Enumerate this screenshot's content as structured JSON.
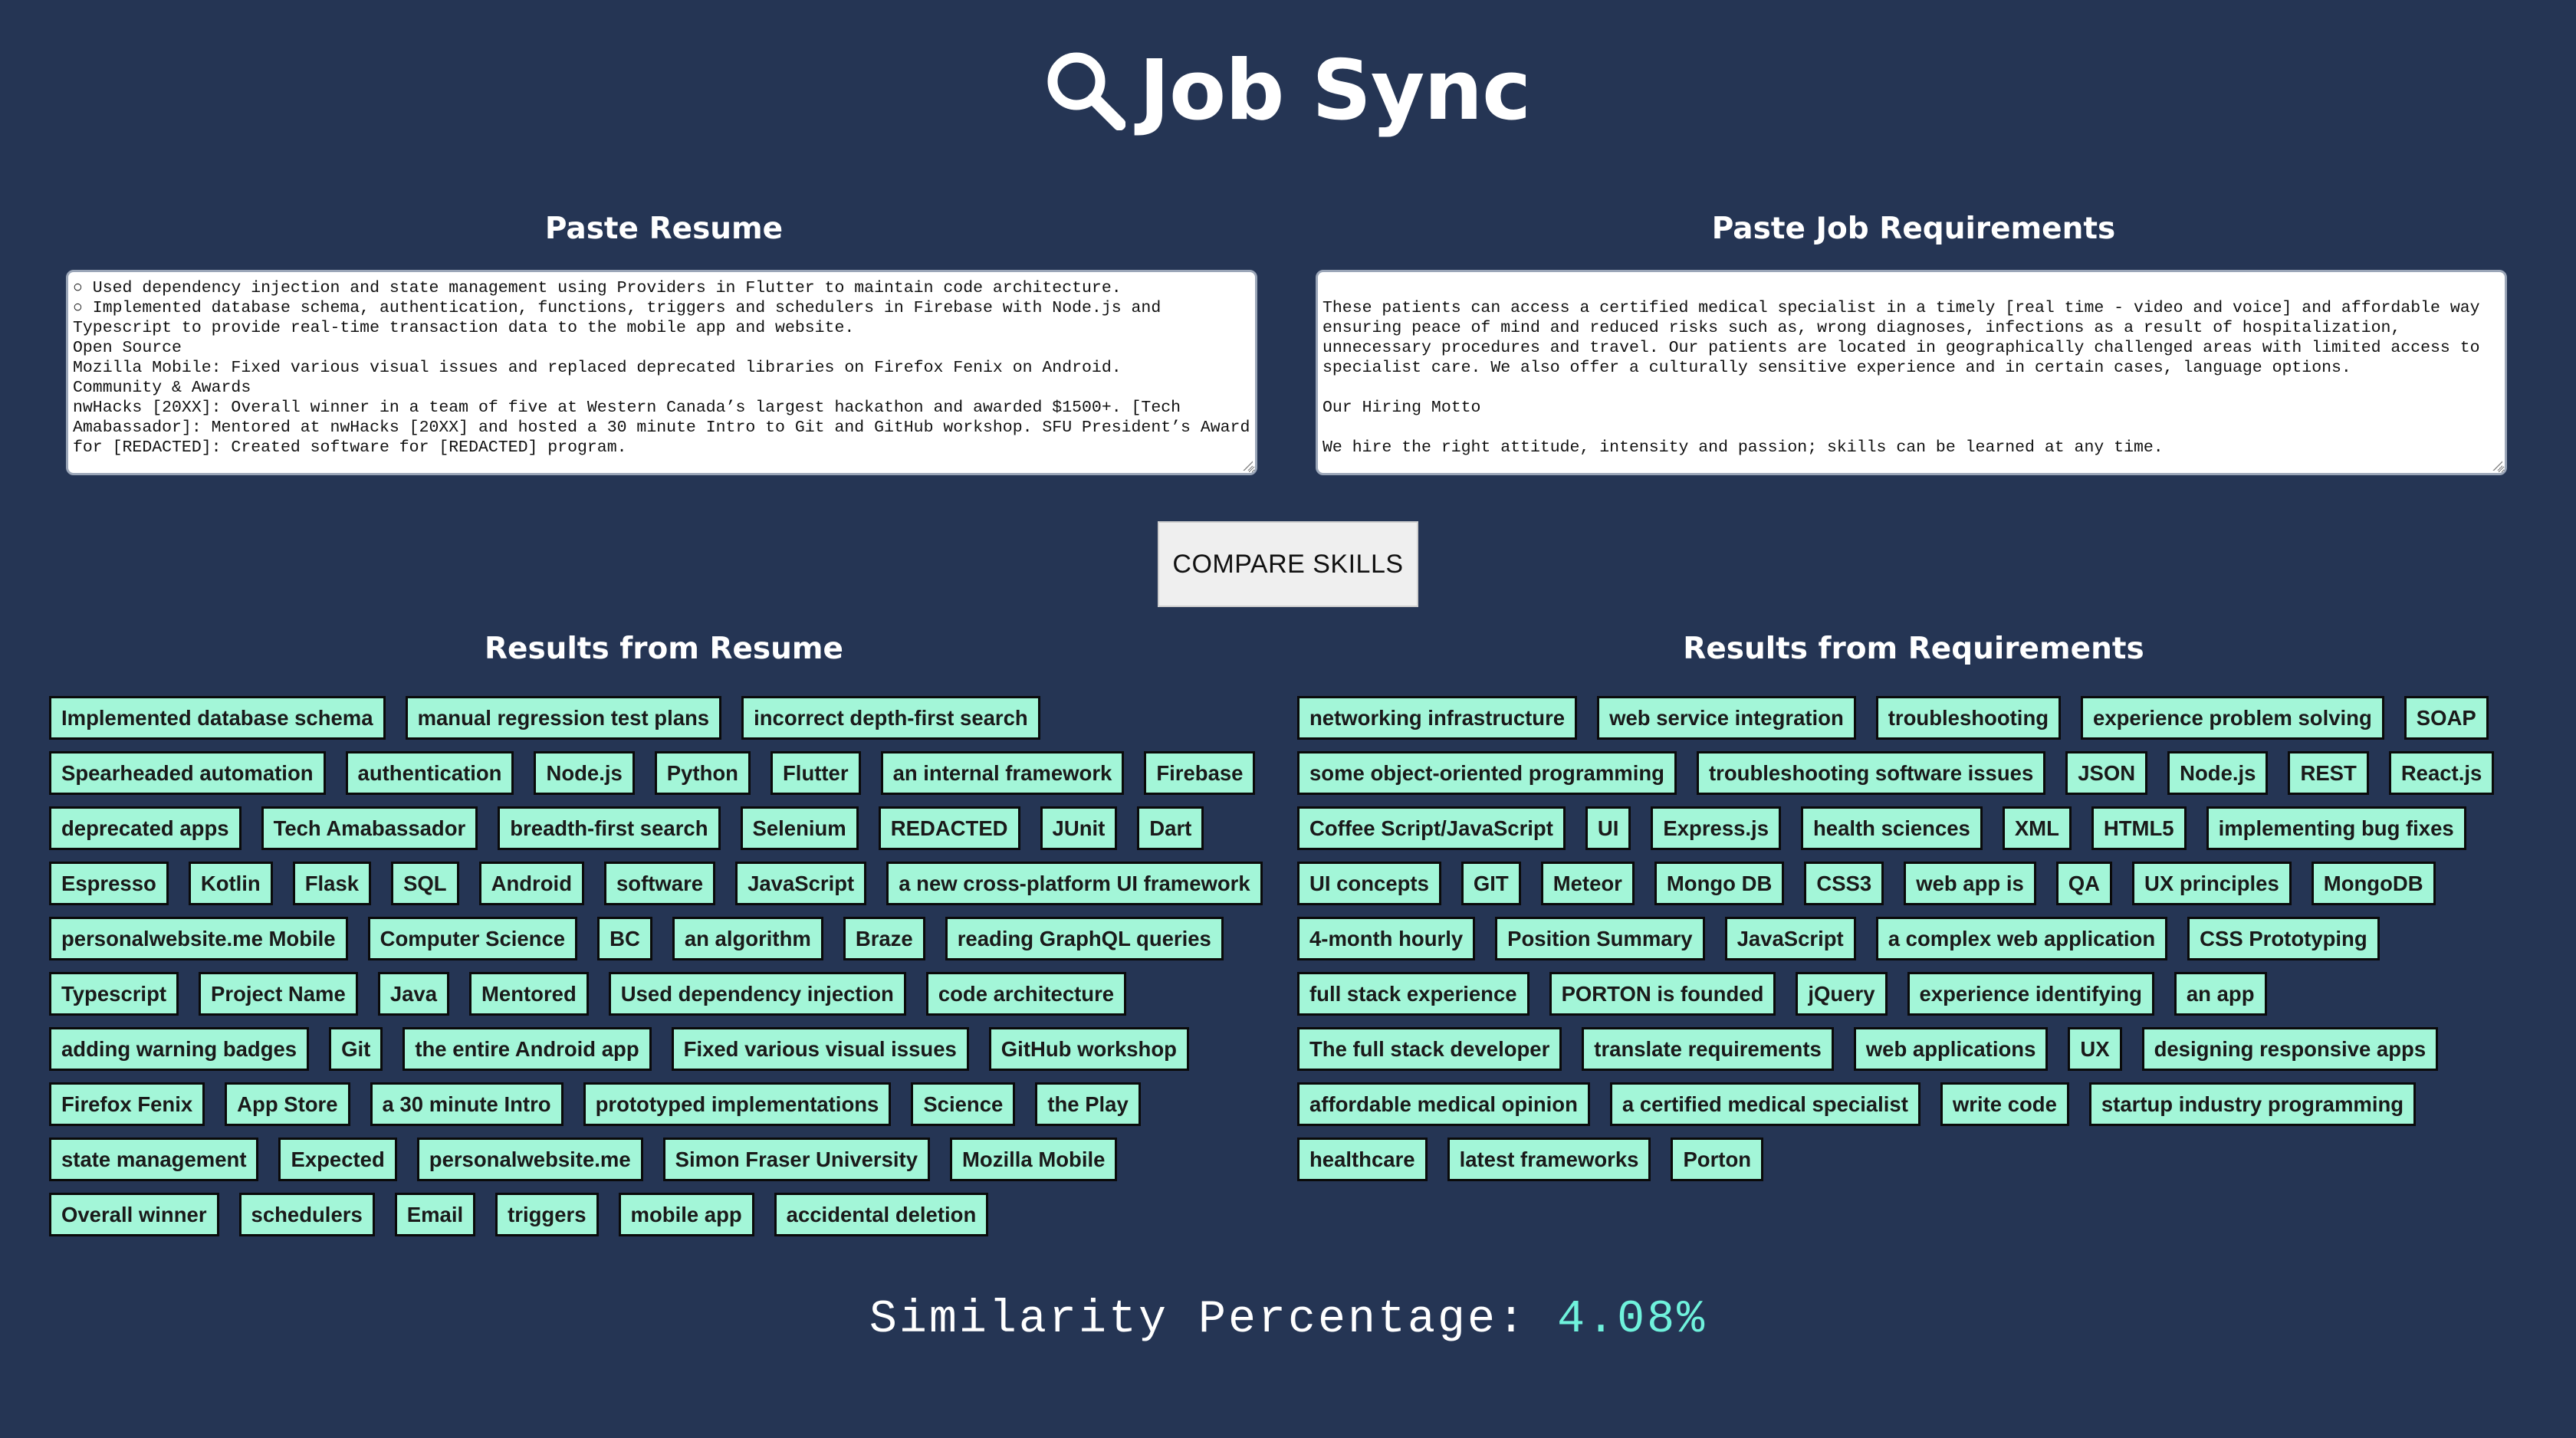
{
  "header": {
    "title": "Job Sync",
    "icon": "search-icon"
  },
  "resume_section": {
    "heading": "Paste Resume",
    "text": "○ Used dependency injection and state management using Providers in Flutter to maintain code architecture.\n○ Implemented database schema, authentication, functions, triggers and schedulers in Firebase with Node.js and Typescript to provide real-time transaction data to the mobile app and website.\nOpen Source\nMozilla Mobile: Fixed various visual issues and replaced deprecated libraries on Firefox Fenix on Android.\nCommunity & Awards\nnwHacks [20XX]: Overall winner in a team of five at Western Canada’s largest hackathon and awarded $1500+. [Tech Amabassador]: Mentored at nwHacks [20XX] and hosted a 30 minute Intro to Git and GitHub workshop. SFU President’s Award for [REDACTED]: Created software for [REDACTED] program."
  },
  "requirements_section": {
    "heading": "Paste Job Requirements",
    "text": "\nThese patients can access a certified medical specialist in a timely [real time - video and voice] and affordable way ensuring peace of mind and reduced risks such as, wrong diagnoses, infections as a result of hospitalization, unnecessary procedures and travel. Our patients are located in geographically challenged areas with limited access to specialist care. We also offer a culturally sensitive experience and in certain cases, language options.\n\nOur Hiring Motto\n\nWe hire the right attitude, intensity and passion; skills can be learned at any time."
  },
  "compare_button": {
    "label": "COMPARE SKILLS"
  },
  "results_resume": {
    "heading": "Results from Resume",
    "tags": [
      "Implemented database schema",
      "manual regression test plans",
      "incorrect depth-first search",
      "Spearheaded automation",
      "authentication",
      "Node.js",
      "Python",
      "Flutter",
      "an internal framework",
      "Firebase",
      "deprecated apps",
      "Tech Amabassador",
      "breadth-first search",
      "Selenium",
      "REDACTED",
      "JUnit",
      "Dart",
      "Espresso",
      "Kotlin",
      "Flask",
      "SQL",
      "Android",
      "software",
      "JavaScript",
      "a new cross-platform UI framework",
      "personalwebsite.me Mobile",
      "Computer Science",
      "BC",
      "an algorithm",
      "Braze",
      "reading GraphQL queries",
      "Typescript",
      "Project Name",
      "Java",
      "Mentored",
      "Used dependency injection",
      "code architecture",
      "adding warning badges",
      "Git",
      "the entire Android app",
      "Fixed various visual issues",
      "GitHub workshop",
      "Firefox Fenix",
      "App Store",
      "a 30 minute Intro",
      "prototyped implementations",
      "Science",
      "the Play",
      "state management",
      "Expected",
      "personalwebsite.me",
      "Simon Fraser University",
      "Mozilla Mobile",
      "Overall winner",
      "schedulers",
      "Email",
      "triggers",
      "mobile app",
      "accidental deletion"
    ]
  },
  "results_requirements": {
    "heading": "Results from Requirements",
    "tags": [
      "networking infrastructure",
      "web service integration",
      "troubleshooting",
      "experience problem solving",
      "SOAP",
      "some object-oriented programming",
      "troubleshooting software issues",
      "JSON",
      "Node.js",
      "REST",
      "React.js",
      "Coffee Script/JavaScript",
      "UI",
      "Express.js",
      "health sciences",
      "XML",
      "HTML5",
      "implementing bug fixes",
      "UI concepts",
      "GIT",
      "Meteor",
      "Mongo DB",
      "CSS3",
      "web app is",
      "QA",
      "UX principles",
      "MongoDB",
      "4-month hourly",
      "Position Summary",
      "JavaScript",
      "a complex web application",
      "CSS Prototyping",
      "full stack experience",
      "PORTON is founded",
      "jQuery",
      "experience identifying",
      "an app",
      "The full stack developer",
      "translate requirements",
      "web applications",
      "UX",
      "designing responsive apps",
      "affordable medical opinion",
      "a certified medical specialist",
      "write code",
      "startup industry programming",
      "healthcare",
      "latest frameworks",
      "Porton"
    ]
  },
  "similarity": {
    "label": "Similarity Percentage:",
    "value": "4.08%"
  },
  "colors": {
    "background": "#253554",
    "tag_background": "#a3f6d8",
    "similarity_accent": "#6ff2dc"
  }
}
